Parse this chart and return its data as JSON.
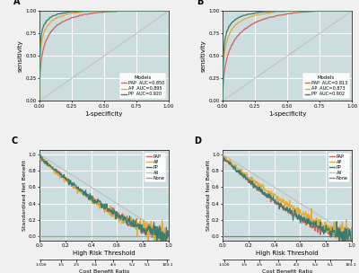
{
  "panel_A": {
    "title": "A",
    "models": [
      "PAP",
      "AP",
      "PP"
    ],
    "aucs": [
      0.85,
      0.895,
      0.92
    ],
    "colors": [
      "#d4625a",
      "#e8a832",
      "#3a7d6e"
    ],
    "xlabel": "1-specificity",
    "ylabel": "sensitivity"
  },
  "panel_B": {
    "title": "B",
    "models": [
      "PAP",
      "AP",
      "PP"
    ],
    "aucs": [
      0.813,
      0.873,
      0.902
    ],
    "colors": [
      "#d4625a",
      "#e8a832",
      "#3a7d6e"
    ],
    "xlabel": "1-specificity",
    "ylabel": "sensitivity"
  },
  "panel_C": {
    "title": "C",
    "models": [
      "PAP",
      "AP",
      "PP",
      "All",
      "None"
    ],
    "colors": [
      "#e8a832",
      "#e8a832",
      "#3a7d6e",
      "#b0b0b0",
      "#909090"
    ],
    "line_colors": [
      "#d4625a",
      "#e8a832",
      "#3a7d6e",
      "#c0c0c0",
      "#a0a0a0"
    ],
    "xlabel": "High Risk Threshold",
    "ylabel": "Standardized Net Benefit",
    "x2label": "Cost Benefit Ratio",
    "x2tick_pos": [
      0.0099,
      0.1667,
      0.2857,
      0.4286,
      0.5714,
      0.7143,
      0.8333,
      0.9901
    ],
    "x2tick_labels": [
      "1:100",
      "1:5",
      "2:5",
      "3:4",
      "4:3",
      "5:2",
      "5:1",
      "100:1"
    ],
    "ylim": [
      -0.05,
      1.05
    ],
    "yticks": [
      0.0,
      0.2,
      0.4,
      0.6,
      0.8,
      1.0
    ]
  },
  "panel_D": {
    "title": "D",
    "models": [
      "PAP",
      "AP",
      "PP",
      "All",
      "None"
    ],
    "line_colors": [
      "#d4625a",
      "#e8a832",
      "#3a7d6e",
      "#c0c0c0",
      "#808080"
    ],
    "xlabel": "High Risk Threshold",
    "ylabel": "Standardized Net Benefit",
    "x2label": "Cost Benefit Ratio",
    "x2tick_pos": [
      0.0099,
      0.1667,
      0.2857,
      0.4286,
      0.5714,
      0.7143,
      0.8333,
      0.9901
    ],
    "x2tick_labels": [
      "1:100",
      "1:5",
      "2:5",
      "3:4",
      "4:3",
      "5:2",
      "5:1",
      "100:1"
    ],
    "ylim": [
      -0.05,
      1.05
    ],
    "yticks": [
      0.0,
      0.2,
      0.4,
      0.6,
      0.8,
      1.0
    ]
  },
  "bg_color": "#ccdde0",
  "grid_color": "#ffffff",
  "fig_bg": "#f0f0f0"
}
